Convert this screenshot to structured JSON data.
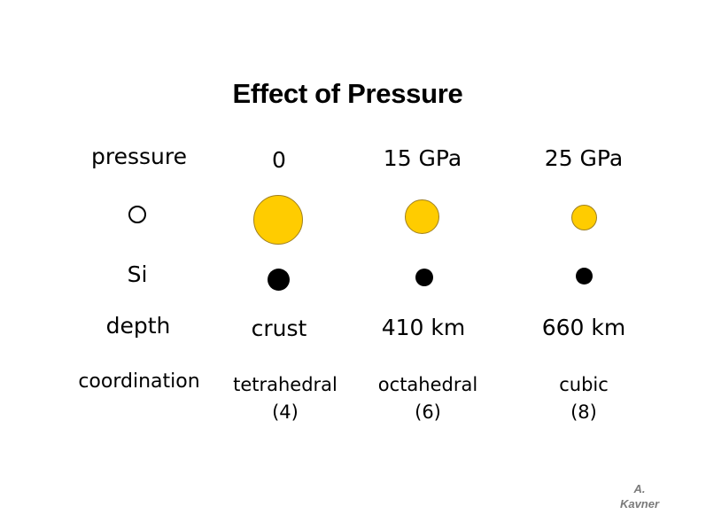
{
  "title": "Effect of Pressure",
  "row_labels": {
    "pressure": "pressure",
    "o_ion": "O",
    "si": "Si",
    "depth": "depth",
    "coordination": "coordination"
  },
  "columns": [
    {
      "pressure": "0",
      "depth": "crust",
      "coordination": "tetrahedral",
      "coordination_number": "(4)"
    },
    {
      "pressure": "15 GPa",
      "depth": "410 km",
      "coordination": "octahedral",
      "coordination_number": "(6)"
    },
    {
      "pressure": "25 GPa",
      "depth": "660 km",
      "coordination": "cubic",
      "coordination_number": "(8)"
    }
  ],
  "credit": {
    "line1": "A.",
    "line2": "Kavner"
  },
  "colors": {
    "oxygen_ion": "#FFCC00",
    "silicon_ion": "#000000",
    "credit_text": "#7a7a7a"
  }
}
